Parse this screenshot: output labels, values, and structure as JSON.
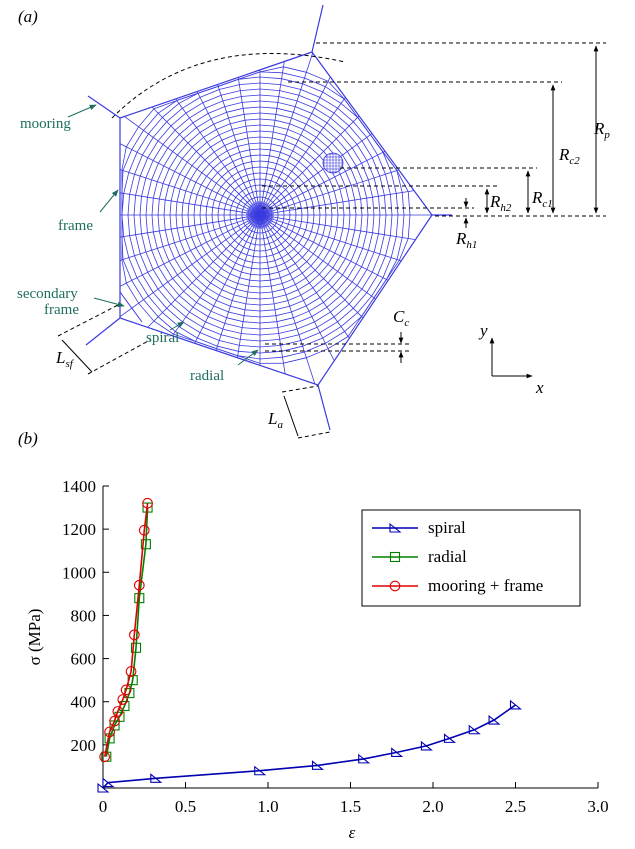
{
  "diagram": {
    "panel_label": "(a)",
    "mooring": "mooring",
    "frame": "frame",
    "secondary_frame": [
      "secondary",
      "frame"
    ],
    "spiral": "spiral",
    "radial": "radial",
    "dimensions": {
      "R_p": {
        "main": "R",
        "sub": "p"
      },
      "R_c2": {
        "main": "R",
        "sub": "c2"
      },
      "R_c1": {
        "main": "R",
        "sub": "c1"
      },
      "R_h2": {
        "main": "R",
        "sub": "h2"
      },
      "R_h1": {
        "main": "R",
        "sub": "h1"
      },
      "C_c": {
        "main": "C",
        "sub": "c"
      },
      "L_sf": {
        "main": "L",
        "sub": "sf"
      },
      "L_a": {
        "main": "L",
        "sub": "a"
      }
    },
    "axes": {
      "x": "x",
      "y": "y"
    }
  },
  "chart_data": {
    "type": "line",
    "panel_label": "(b)",
    "x_label": "ε",
    "y_label": "σ (MPa)",
    "xlim": [
      0,
      3
    ],
    "ylim": [
      0,
      1400
    ],
    "xticks": [
      0,
      0.5,
      {
        "value": 1,
        "label": "1.0"
      },
      1.5,
      {
        "value": 2,
        "label": "2.0"
      },
      2.5,
      {
        "value": 3,
        "label": "3.0"
      }
    ],
    "yticks": [
      200,
      400,
      600,
      800,
      1000,
      1200,
      1400
    ],
    "legend": "upper right",
    "series": [
      {
        "name": "spiral",
        "color": "#0000b0",
        "marker": "triangle",
        "x": [
          0,
          0.03,
          0.32,
          0.95,
          1.3,
          1.58,
          1.78,
          1.96,
          2.1,
          2.25,
          2.37,
          2.5
        ],
        "values": [
          0,
          25,
          45,
          80,
          105,
          135,
          165,
          195,
          230,
          270,
          315,
          385
        ]
      },
      {
        "name": "radial",
        "color": "#008000",
        "marker": "square",
        "x": [
          0.02,
          0.04,
          0.07,
          0.1,
          0.13,
          0.16,
          0.18,
          0.2,
          0.22,
          0.26,
          0.27
        ],
        "values": [
          145,
          230,
          290,
          330,
          380,
          440,
          500,
          650,
          880,
          1130,
          1300
        ]
      },
      {
        "name": "mooring + frame",
        "color": "#e00000",
        "marker": "circle",
        "x": [
          0.01,
          0.04,
          0.07,
          0.09,
          0.12,
          0.14,
          0.17,
          0.19,
          0.22,
          0.25,
          0.27
        ],
        "values": [
          145,
          260,
          310,
          355,
          410,
          455,
          540,
          710,
          940,
          1195,
          1320
        ]
      }
    ]
  }
}
